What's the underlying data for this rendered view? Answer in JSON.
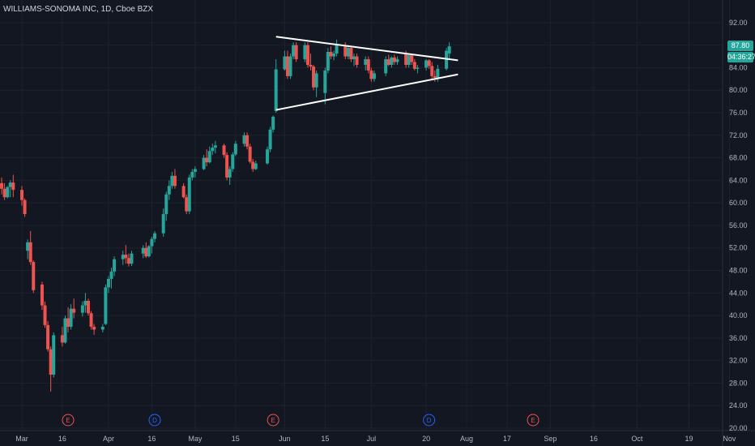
{
  "header": {
    "title": "WILLIAMS-SONOMA INC, 1D, Cboe BZX"
  },
  "price_tags": {
    "last_price": "87.80",
    "countdown": "04:36:27"
  },
  "colors": {
    "background": "#131722",
    "up": "#26a69a",
    "down": "#ef5350",
    "grid": "#1e222d",
    "trendline": "#ffffff",
    "dividend": "#2962ff",
    "earnings": "#ef5350",
    "text": "#b2b5be"
  },
  "chart_data": {
    "type": "candlestick",
    "ylim": [
      20,
      94
    ],
    "yticks": [
      "92.00",
      "88.00",
      "84.00",
      "80.00",
      "76.00",
      "72.00",
      "68.00",
      "64.00",
      "60.00",
      "56.00",
      "52.00",
      "48.00",
      "44.00",
      "40.00",
      "36.00",
      "32.00",
      "28.00",
      "24.00",
      "20.00"
    ],
    "xticks": [
      {
        "label": "Mar",
        "date": "2020-03-02"
      },
      {
        "label": "16",
        "date": "2020-03-16"
      },
      {
        "label": "Apr",
        "date": "2020-04-01"
      },
      {
        "label": "16",
        "date": "2020-04-16"
      },
      {
        "label": "May",
        "date": "2020-05-01"
      },
      {
        "label": "15",
        "date": "2020-05-15"
      },
      {
        "label": "Jun",
        "date": "2020-06-01"
      },
      {
        "label": "15",
        "date": "2020-06-15"
      },
      {
        "label": "Jul",
        "date": "2020-07-01"
      },
      {
        "label": "20",
        "date": "2020-07-20"
      },
      {
        "label": "Aug",
        "date": "2020-08-03"
      },
      {
        "label": "17",
        "date": "2020-08-17"
      },
      {
        "label": "Sep",
        "date": "2020-09-01"
      },
      {
        "label": "16",
        "date": "2020-09-16"
      },
      {
        "label": "Oct",
        "date": "2020-10-01"
      },
      {
        "label": "19",
        "date": "2020-10-19"
      },
      {
        "label": "Nov",
        "date": "2020-11-02"
      }
    ],
    "candles": [
      [
        "2020-02-21",
        64.5,
        66,
        62.6,
        63.5
      ],
      [
        "2020-02-24",
        63.5,
        64.5,
        61.5,
        62.5
      ],
      [
        "2020-02-25",
        62.5,
        63.5,
        60.5,
        61
      ],
      [
        "2020-02-26",
        61,
        63,
        60.8,
        62.8
      ],
      [
        "2020-02-27",
        62.8,
        64,
        61,
        63.6
      ],
      [
        "2020-02-28",
        63.6,
        65,
        61,
        62.3
      ],
      [
        "2020-03-02",
        62.3,
        63,
        59.5,
        60.5
      ],
      [
        "2020-03-03",
        60.5,
        60.8,
        57.5,
        58
      ],
      [
        "2020-03-04",
        51.5,
        53.5,
        50,
        53
      ],
      [
        "2020-03-05",
        53,
        55,
        49,
        49.5
      ],
      [
        "2020-03-06",
        49.5,
        49.8,
        44,
        44.5
      ],
      [
        "2020-03-09",
        45.5,
        46,
        41,
        41.8
      ],
      [
        "2020-03-10",
        41.8,
        42.5,
        37.8,
        38.3
      ],
      [
        "2020-03-11",
        38.3,
        39,
        33.6,
        34
      ],
      [
        "2020-03-12",
        34,
        34.5,
        26.5,
        29.5
      ],
      [
        "2020-03-13",
        29.5,
        37,
        29,
        36.5
      ],
      [
        "2020-03-16",
        36.5,
        38,
        34.5,
        35.2
      ],
      [
        "2020-03-17",
        35.2,
        40,
        35,
        39.5
      ],
      [
        "2020-03-18",
        39.5,
        41.5,
        37,
        38
      ],
      [
        "2020-03-19",
        38,
        42,
        37.5,
        41.2
      ],
      [
        "2020-03-20",
        41.2,
        43,
        39.5,
        40.5
      ],
      [
        "2020-03-23",
        40.5,
        42.5,
        39.8,
        41.8
      ],
      [
        "2020-03-24",
        41.8,
        44,
        40.5,
        42.6
      ],
      [
        "2020-03-25",
        42.6,
        43,
        40,
        40.4
      ],
      [
        "2020-03-26",
        40.4,
        40.8,
        37.5,
        38
      ],
      [
        "2020-03-27",
        38,
        38.5,
        36.6,
        37.5
      ],
      [
        "2020-03-30",
        37.5,
        38.5,
        37,
        38
      ],
      [
        "2020-03-31",
        38.5,
        45.5,
        38.3,
        45
      ],
      [
        "2020-04-01",
        45,
        47,
        44,
        46.5
      ],
      [
        "2020-04-02",
        46.5,
        48.5,
        44.8,
        47.8
      ],
      [
        "2020-04-03",
        47.8,
        50.5,
        47,
        50
      ],
      [
        "2020-04-06",
        50,
        51.5,
        49,
        50.8
      ],
      [
        "2020-04-07",
        50.8,
        52.5,
        49.2,
        50.2
      ],
      [
        "2020-04-08",
        50.2,
        51,
        48.7,
        49.2
      ],
      [
        "2020-04-09",
        49.2,
        51.5,
        48.8,
        51
      ],
      [
        "2020-04-13",
        51,
        52.5,
        50.2,
        52
      ],
      [
        "2020-04-14",
        52,
        53,
        50.2,
        50.5
      ],
      [
        "2020-04-15",
        50.5,
        52.5,
        50.3,
        52.3
      ],
      [
        "2020-04-16",
        52.3,
        54,
        51,
        53.6
      ],
      [
        "2020-04-17",
        53.6,
        55,
        53,
        54.6
      ],
      [
        "2020-04-20",
        54.6,
        59,
        54,
        58
      ],
      [
        "2020-04-21",
        58,
        62,
        56.8,
        61.5
      ],
      [
        "2020-04-22",
        61.5,
        64,
        60.5,
        63
      ],
      [
        "2020-04-23",
        63,
        65.5,
        62.5,
        64.8
      ],
      [
        "2020-04-24",
        64.8,
        66,
        62.5,
        63
      ],
      [
        "2020-04-27",
        63,
        63.5,
        60.8,
        61
      ],
      [
        "2020-04-28",
        61,
        61.5,
        58,
        58.5
      ],
      [
        "2020-04-29",
        58.5,
        65,
        58,
        64.5
      ],
      [
        "2020-04-30",
        64.5,
        66,
        64,
        65.5
      ],
      [
        "2020-05-01",
        65.5,
        66.5,
        64.5,
        66
      ],
      [
        "2020-05-04",
        66,
        68.5,
        65.8,
        68
      ],
      [
        "2020-05-05",
        68,
        69.5,
        66.5,
        67.2
      ],
      [
        "2020-05-06",
        67.2,
        70,
        67,
        69.2
      ],
      [
        "2020-05-07",
        69.2,
        70.5,
        68.5,
        69.8
      ],
      [
        "2020-05-08",
        69.8,
        71,
        68.8,
        70.2
      ],
      [
        "2020-05-11",
        70.2,
        70.5,
        68,
        68.5
      ],
      [
        "2020-05-12",
        68.5,
        69,
        64,
        64.5
      ],
      [
        "2020-05-13",
        64.5,
        66.5,
        63.2,
        66
      ],
      [
        "2020-05-14",
        66,
        69,
        65.5,
        68.6
      ],
      [
        "2020-05-15",
        68.6,
        71,
        68.3,
        70.5
      ],
      [
        "2020-05-18",
        70.5,
        72.5,
        70,
        72
      ],
      [
        "2020-05-19",
        72,
        72.5,
        69.5,
        70
      ],
      [
        "2020-05-20",
        70,
        70.5,
        67,
        67.3
      ],
      [
        "2020-05-21",
        67.3,
        67.8,
        65.5,
        66
      ],
      [
        "2020-05-22",
        66,
        67.5,
        65.8,
        67
      ],
      [
        "2020-05-26",
        67,
        70,
        66.8,
        69.5
      ],
      [
        "2020-05-27",
        69.5,
        73.5,
        69,
        73
      ],
      [
        "2020-05-28",
        73,
        75.5,
        72.5,
        75.3
      ],
      [
        "2020-05-29",
        76.3,
        85.5,
        76,
        83.7
      ],
      [
        "2020-06-01",
        83.7,
        87,
        83.5,
        86
      ],
      [
        "2020-06-02",
        86,
        87,
        82,
        82.5
      ],
      [
        "2020-06-03",
        82.5,
        86.5,
        82,
        86
      ],
      [
        "2020-06-04",
        86,
        88.5,
        85.5,
        88
      ],
      [
        "2020-06-05",
        88,
        88.5,
        85,
        85.5
      ],
      [
        "2020-06-08",
        85.5,
        88.5,
        85,
        88
      ],
      [
        "2020-06-09",
        88,
        88.5,
        84,
        84.5
      ],
      [
        "2020-06-10",
        84.5,
        86.5,
        83.5,
        84.2
      ],
      [
        "2020-06-11",
        84.2,
        84.5,
        80,
        80.5
      ],
      [
        "2020-06-12",
        80.5,
        83.5,
        78.8,
        83
      ],
      [
        "2020-06-15",
        79.5,
        84,
        77.5,
        83.5
      ],
      [
        "2020-06-16",
        83.5,
        87.5,
        83,
        86.8
      ],
      [
        "2020-06-17",
        86.8,
        87.8,
        85.5,
        86
      ],
      [
        "2020-06-18",
        86,
        87,
        85.3,
        86.5
      ],
      [
        "2020-06-19",
        86.5,
        89,
        86,
        88
      ],
      [
        "2020-06-22",
        88,
        88.5,
        85.5,
        86
      ],
      [
        "2020-06-23",
        86,
        88,
        85.5,
        87.5
      ],
      [
        "2020-06-24",
        87.5,
        87.8,
        85,
        85.5
      ],
      [
        "2020-06-25",
        85.5,
        86.5,
        84.3,
        86
      ],
      [
        "2020-06-26",
        86,
        86.5,
        84,
        84.5
      ],
      [
        "2020-06-29",
        84.5,
        86,
        83.5,
        85.5
      ],
      [
        "2020-06-30",
        85.5,
        86,
        83,
        83.5
      ],
      [
        "2020-07-01",
        83.5,
        84,
        81.5,
        82
      ],
      [
        "2020-07-02",
        82,
        83.5,
        81.5,
        83
      ],
      [
        "2020-07-06",
        83,
        86,
        82.5,
        85.5
      ],
      [
        "2020-07-07",
        85.5,
        86.3,
        84.3,
        84.5
      ],
      [
        "2020-07-08",
        84.5,
        86,
        84,
        85.8
      ],
      [
        "2020-07-09",
        85.8,
        86.3,
        84.5,
        85
      ],
      [
        "2020-07-10",
        85,
        86,
        84.5,
        85.5
      ],
      [
        "2020-07-13",
        86.5,
        87,
        84,
        84.5
      ],
      [
        "2020-07-14",
        84.5,
        86.5,
        84,
        86.2
      ],
      [
        "2020-07-15",
        86.2,
        86.5,
        84.5,
        85
      ],
      [
        "2020-07-16",
        85,
        85.5,
        83.5,
        83.8
      ],
      [
        "2020-07-17",
        83.8,
        84.5,
        83,
        84
      ],
      [
        "2020-07-20",
        84,
        85.5,
        83.5,
        85.3
      ],
      [
        "2020-07-21",
        85.3,
        85.5,
        83.8,
        84.3
      ],
      [
        "2020-07-22",
        84.3,
        85,
        82,
        82.5
      ],
      [
        "2020-07-23",
        82.5,
        83.5,
        81.5,
        82.2
      ],
      [
        "2020-07-24",
        82.2,
        84.5,
        81.5,
        83.8
      ],
      [
        "2020-07-27",
        83.8,
        87.5,
        83.5,
        87
      ],
      [
        "2020-07-28",
        86.5,
        88.5,
        85.5,
        87.8
      ]
    ],
    "trendlines": [
      {
        "name": "upper",
        "points": [
          [
            "2020-05-29",
            89.5
          ],
          [
            "2020-07-31",
            85.3
          ]
        ]
      },
      {
        "name": "lower",
        "points": [
          [
            "2020-05-29",
            76.5
          ],
          [
            "2020-07-31",
            82.8
          ]
        ]
      }
    ],
    "events": [
      {
        "letter": "E",
        "kind": "earnings",
        "date": "2020-03-18"
      },
      {
        "letter": "D",
        "kind": "dividend",
        "date": "2020-04-17"
      },
      {
        "letter": "E",
        "kind": "earnings",
        "date": "2020-05-28"
      },
      {
        "letter": "D",
        "kind": "dividend",
        "date": "2020-07-21"
      },
      {
        "letter": "E",
        "kind": "earnings",
        "date": "2020-08-26"
      }
    ]
  }
}
